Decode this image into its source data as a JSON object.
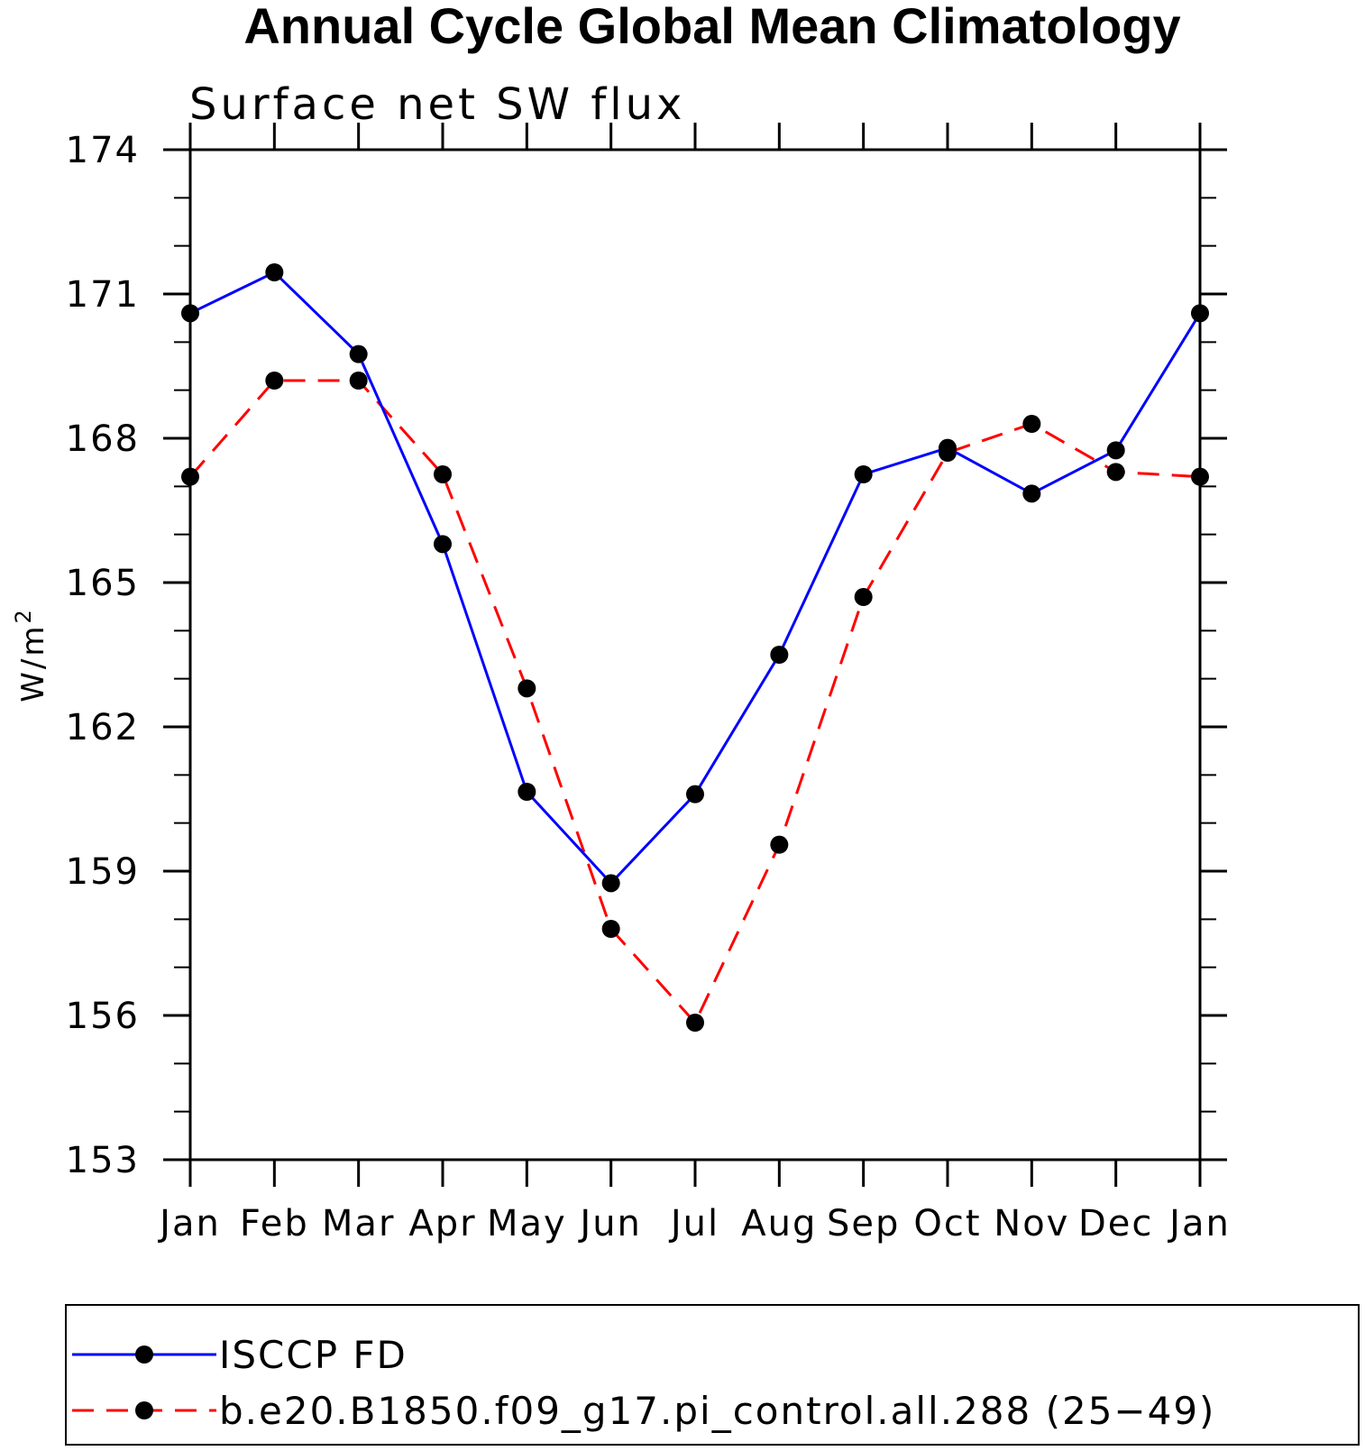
{
  "chart_data": {
    "type": "line",
    "title": "Annual Cycle Global Mean Climatology",
    "subtitle": "Surface net SW flux",
    "ylabel": "W/m",
    "ylabel_superscript": "2",
    "xlabel": "",
    "categories": [
      "Jan",
      "Feb",
      "Mar",
      "Apr",
      "May",
      "Jun",
      "Jul",
      "Aug",
      "Sep",
      "Oct",
      "Nov",
      "Dec",
      "Jan"
    ],
    "yticks": [
      "174",
      "171",
      "168",
      "165",
      "162",
      "159",
      "156",
      "153"
    ],
    "ylim": [
      153,
      174
    ],
    "grid": false,
    "legend_position": "bottom",
    "series": [
      {
        "name": "ISCCP FD",
        "color": "#0000ff",
        "line_style": "solid",
        "marker": "circle",
        "values": [
          170.6,
          171.45,
          169.75,
          165.8,
          160.65,
          158.75,
          160.6,
          163.5,
          167.25,
          167.8,
          166.85,
          167.75,
          170.6
        ]
      },
      {
        "name": "b.e20.B1850.f09_g17.pi_control.all.288 (25−49)",
        "color": "#ff0000",
        "line_style": "dashed",
        "marker": "circle",
        "values": [
          167.2,
          169.2,
          169.2,
          167.25,
          162.8,
          157.8,
          155.85,
          159.55,
          164.7,
          167.7,
          168.3,
          167.3,
          167.2
        ]
      }
    ]
  }
}
